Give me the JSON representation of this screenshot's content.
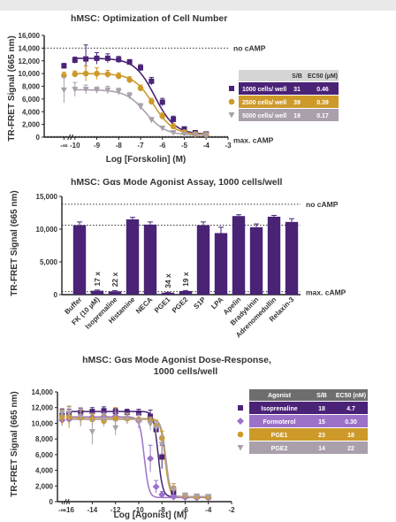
{
  "colors": {
    "purple": "#4a2377",
    "gold": "#cd9a2a",
    "gray": "#a9a0ac",
    "lavender": "#9b72c8",
    "table_gray": "#d5d5d5",
    "table_dark": "#6e6e6e"
  },
  "chart_data": [
    {
      "type": "scatter",
      "title": "hMSC: Optimization of Cell Number",
      "xlabel": "Log [Forskolin] (M)",
      "ylabel": "TR-FRET Signal (665 nm)",
      "xlim": [
        -11,
        -3
      ],
      "ylim": [
        0,
        16000
      ],
      "xtick_labels": [
        "-∞",
        "-10",
        "-9",
        "-8",
        "-7",
        "-6",
        "-5",
        "-4",
        "-3"
      ],
      "ytick_labels": [
        "0",
        "2,000",
        "4,000",
        "6,000",
        "8,000",
        "10,000",
        "12,000",
        "14,000",
        "16,000"
      ],
      "reference_lines": [
        {
          "label": "no cAMP",
          "y": 14000
        },
        {
          "label": "max. cAMP",
          "y": 100
        }
      ],
      "x": [
        -10.5,
        -10,
        -9.5,
        -9,
        -8.5,
        -8,
        -7.5,
        -7,
        -6.5,
        -6,
        -5.5,
        -5,
        -4.5,
        -4
      ],
      "series": [
        {
          "name": "1000 cells/ well",
          "marker": "square",
          "values": [
            11200,
            12100,
            12300,
            12400,
            12400,
            12200,
            11800,
            10900,
            8800,
            5500,
            2800,
            1300,
            700,
            500
          ],
          "errors": [
            400,
            500,
            2200,
            900,
            700,
            500,
            400,
            500,
            600,
            600,
            500,
            300,
            200,
            150
          ]
        },
        {
          "name": "2500 cells/ well",
          "marker": "circle",
          "values": [
            9700,
            9900,
            10000,
            10000,
            9900,
            9600,
            9000,
            7700,
            5600,
            3300,
            1700,
            800,
            500,
            400
          ],
          "errors": [
            500,
            500,
            1200,
            900,
            600,
            500,
            500,
            500,
            500,
            500,
            400,
            200,
            150,
            100
          ]
        },
        {
          "name": "5000 cells/ well",
          "marker": "triangle",
          "values": [
            7400,
            7500,
            7500,
            7400,
            7400,
            7200,
            6500,
            4800,
            2700,
            1400,
            700,
            450,
            350,
            300
          ],
          "errors": [
            2000,
            1100,
            700,
            500,
            600,
            500,
            500,
            500,
            400,
            300,
            200,
            150,
            100,
            100
          ]
        }
      ],
      "table": {
        "headers": [
          "",
          "S/B",
          "EC50 (µM)"
        ],
        "rows": [
          [
            "1000 cells/ well",
            "31",
            "0.46"
          ],
          [
            "2500 cells/ well",
            "39",
            "0.39"
          ],
          [
            "5000 cells/ well",
            "19",
            "0.17"
          ]
        ]
      }
    },
    {
      "type": "bar",
      "title": "hMSC: Gαs Mode Agonist Assay, 1000 cells/well",
      "xlabel": "",
      "ylabel": "TR-FRET Signal (665 nm)",
      "ylim": [
        0,
        15000
      ],
      "ytick_labels": [
        "0",
        "5,000",
        "10,000",
        "15,000"
      ],
      "categories": [
        "Buffer",
        "FK (10 µM)",
        "Isoprenaline",
        "Histamine",
        "NECA",
        "PGE1",
        "PGE2",
        "S1P",
        "LPA",
        "Apelin",
        "Bradykinin",
        "Adrenomedullin",
        "Relaxin-3"
      ],
      "values": [
        10600,
        600,
        500,
        11500,
        10700,
        300,
        550,
        10600,
        9400,
        12000,
        10300,
        11900,
        11100
      ],
      "errors": [
        500,
        100,
        100,
        300,
        400,
        50,
        80,
        500,
        900,
        200,
        500,
        200,
        500
      ],
      "fold_labels": [
        "",
        "17 x",
        "22 x",
        "",
        "",
        "34 x",
        "19 x",
        "",
        "",
        "",
        "",
        "",
        ""
      ],
      "reference_lines": [
        {
          "label": "no cAMP",
          "y": 13800
        },
        {
          "label": "",
          "y": 10600
        },
        {
          "label": "max. cAMP",
          "y": 450
        }
      ]
    },
    {
      "type": "scatter",
      "title": "hMSC: Gαs Mode Agonist Dose-Response,",
      "subtitle": "1000 cells/well",
      "xlabel": "Log [Agonist] (M)",
      "ylabel": "TR-FRET Signal (665 nm)",
      "xlim": [
        -17,
        -2
      ],
      "ylim": [
        0,
        14000
      ],
      "xtick_labels": [
        "-∞",
        "-16",
        "-14",
        "-12",
        "-10",
        "-8",
        "-6",
        "-4",
        "-2"
      ],
      "ytick_labels": [
        "0",
        "2,000",
        "4,000",
        "6,000",
        "8,000",
        "10,000",
        "12,000",
        "14,000"
      ],
      "x": [
        -16.6,
        -16,
        -15,
        -14,
        -13,
        -12,
        -11,
        -10,
        -9,
        -8.5,
        -8,
        -7,
        -6,
        -5,
        -4
      ],
      "series": [
        {
          "name": "Isoprenaline",
          "marker": "square",
          "values": [
            11000,
            11200,
            11400,
            11500,
            11600,
            11500,
            11400,
            11300,
            10900,
            9200,
            5700,
            1200,
            700,
            650,
            600
          ],
          "errors": [
            800,
            600,
            500,
            500,
            500,
            400,
            400,
            500,
            800,
            600,
            1500,
            400,
            200,
            150,
            150
          ]
        },
        {
          "name": "Formoterol",
          "marker": "diamond",
          "values": [
            10400,
            10500,
            10700,
            10800,
            10900,
            10900,
            10700,
            10300,
            5500,
            1900,
            900,
            600,
            550,
            500,
            500
          ],
          "errors": [
            700,
            600,
            500,
            500,
            500,
            500,
            600,
            900,
            1700,
            800,
            400,
            200,
            150,
            150,
            150
          ]
        },
        {
          "name": "PGE1",
          "marker": "circle",
          "values": [
            10800,
            10800,
            10700,
            10500,
            10300,
            10600,
            10600,
            10500,
            10300,
            9700,
            8100,
            1700,
            800,
            650,
            600
          ],
          "errors": [
            900,
            1400,
            900,
            700,
            700,
            1400,
            600,
            500,
            500,
            700,
            900,
            600,
            300,
            200,
            150
          ]
        },
        {
          "name": "PGE2",
          "marker": "triangle",
          "values": [
            11300,
            11300,
            10800,
            8900,
            10500,
            9400,
            10600,
            10300,
            9900,
            9400,
            7300,
            1500,
            800,
            700,
            650
          ],
          "errors": [
            600,
            800,
            1200,
            1600,
            700,
            900,
            700,
            700,
            800,
            800,
            1100,
            500,
            300,
            200,
            150
          ]
        }
      ],
      "table": {
        "headers": [
          "Agonist",
          "S/B",
          "EC50 (nM)"
        ],
        "rows": [
          [
            "Isoprenaline",
            "18",
            "4.7"
          ],
          [
            "Formoterol",
            "15",
            "0.30"
          ],
          [
            "PGE1",
            "23",
            "18"
          ],
          [
            "PGE2",
            "14",
            "22"
          ]
        ]
      }
    }
  ]
}
